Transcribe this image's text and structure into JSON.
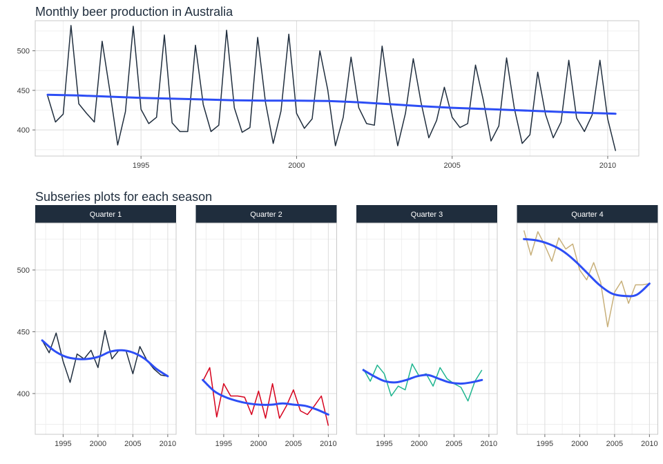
{
  "chart_data": [
    {
      "type": "line",
      "title": "Monthly beer production in Australia",
      "xlabel": "",
      "ylabel": "",
      "xlim": [
        1991.6,
        2011.0
      ],
      "ylim": [
        367,
        538
      ],
      "x_ticks": [
        1995,
        2000,
        2005,
        2010
      ],
      "y_ticks": [
        400,
        450,
        500
      ],
      "grid": true,
      "series": [
        {
          "color": "#1f2d3d",
          "x": [
            1992.0,
            1992.25,
            1992.5,
            1992.75,
            1993.0,
            1993.25,
            1993.5,
            1993.75,
            1994.0,
            1994.25,
            1994.5,
            1994.75,
            1995.0,
            1995.25,
            1995.5,
            1995.75,
            1996.0,
            1996.25,
            1996.5,
            1996.75,
            1997.0,
            1997.25,
            1997.5,
            1997.75,
            1998.0,
            1998.25,
            1998.5,
            1998.75,
            1999.0,
            1999.25,
            1999.5,
            1999.75,
            2000.0,
            2000.25,
            2000.5,
            2000.75,
            2001.0,
            2001.25,
            2001.5,
            2001.75,
            2002.0,
            2002.25,
            2002.5,
            2002.75,
            2003.0,
            2003.25,
            2003.5,
            2003.75,
            2004.0,
            2004.25,
            2004.5,
            2004.75,
            2005.0,
            2005.25,
            2005.5,
            2005.75,
            2006.0,
            2006.25,
            2006.5,
            2006.75,
            2007.0,
            2007.25,
            2007.5,
            2007.75,
            2008.0,
            2008.25,
            2008.5,
            2008.75,
            2009.0,
            2009.25,
            2009.5,
            2009.75,
            2010.0,
            2010.25
          ],
          "y": [
            443,
            410,
            420,
            532,
            433,
            421,
            410,
            512,
            449,
            381,
            423,
            531,
            426,
            408,
            416,
            520,
            409,
            398,
            398,
            507,
            432,
            398,
            406,
            526,
            428,
            397,
            403,
            517,
            435,
            383,
            424,
            521,
            421,
            402,
            414,
            500,
            451,
            380,
            416,
            492,
            428,
            408,
            406,
            506,
            435,
            380,
            421,
            490,
            435,
            390,
            412,
            454,
            416,
            403,
            408,
            482,
            438,
            386,
            405,
            491,
            427,
            383,
            394,
            473,
            420,
            390,
            410,
            488,
            415,
            398,
            419,
            488,
            414,
            374
          ]
        },
        {
          "color": "#2d4ef5",
          "x": [
            1992.0,
            1993.0,
            1994.0,
            1995.0,
            1996.0,
            1997.0,
            1998.0,
            1999.0,
            2000.0,
            2001.0,
            2002.0,
            2003.0,
            2004.0,
            2005.0,
            2006.0,
            2007.0,
            2008.0,
            2009.0,
            2010.25
          ],
          "y": [
            444.5,
            443.5,
            442.0,
            440.5,
            439.5,
            438.5,
            437.5,
            437.0,
            437.0,
            436.5,
            435.0,
            432.5,
            430.0,
            428.0,
            426.5,
            425.0,
            423.5,
            422.0,
            420.5
          ]
        }
      ]
    },
    {
      "type": "line",
      "title": "Subseries plots for each season",
      "xlabel": "",
      "ylabel": "",
      "xlim": [
        1991.0,
        2011.2
      ],
      "ylim": [
        367,
        538
      ],
      "x_ticks": [
        1995,
        2000,
        2005,
        2010
      ],
      "y_ticks": [
        400,
        450,
        500
      ],
      "grid": true,
      "facets": [
        {
          "label": "Quarter 1",
          "color": "#1f2d3d",
          "x": [
            1992,
            1993,
            1994,
            1995,
            1996,
            1997,
            1998,
            1999,
            2000,
            2001,
            2002,
            2003,
            2004,
            2005,
            2006,
            2007,
            2008,
            2009,
            2010
          ],
          "y": [
            443,
            433,
            449,
            426,
            409,
            432,
            428,
            435,
            421,
            451,
            428,
            435,
            435,
            416,
            438,
            427,
            420,
            415,
            414
          ],
          "smooth": [
            443,
            435,
            430,
            428,
            428,
            430,
            434,
            435,
            433,
            428,
            420,
            414
          ]
        },
        {
          "label": "Quarter 2",
          "color": "#d6001c",
          "x": [
            1992,
            1993,
            1994,
            1995,
            1996,
            1997,
            1998,
            1999,
            2000,
            2001,
            2002,
            2003,
            2004,
            2005,
            2006,
            2007,
            2008,
            2009,
            2010
          ],
          "y": [
            410,
            421,
            381,
            408,
            398,
            398,
            397,
            383,
            402,
            380,
            408,
            380,
            390,
            403,
            386,
            383,
            390,
            398,
            374
          ],
          "smooth": [
            411,
            402,
            397,
            394,
            392,
            391,
            391,
            392,
            391,
            390,
            387,
            383
          ]
        },
        {
          "label": "Quarter 3",
          "color": "#1fb58f",
          "x": [
            1992,
            1993,
            1994,
            1995,
            1996,
            1997,
            1998,
            1999,
            2000,
            2001,
            2002,
            2003,
            2004,
            2005,
            2006,
            2007,
            2008,
            2009
          ],
          "y": [
            420,
            410,
            423,
            416,
            398,
            406,
            403,
            424,
            414,
            416,
            406,
            421,
            412,
            408,
            405,
            394,
            410,
            419
          ],
          "smooth": [
            419,
            414,
            410,
            409,
            411,
            414,
            415,
            412,
            409,
            408,
            409,
            411
          ]
        },
        {
          "label": "Quarter 4",
          "color": "#c8b07a",
          "x": [
            1992,
            1993,
            1994,
            1995,
            1996,
            1997,
            1998,
            1999,
            2000,
            2001,
            2002,
            2003,
            2004,
            2005,
            2006,
            2007,
            2008,
            2009,
            2010
          ],
          "y": [
            532,
            512,
            531,
            520,
            507,
            526,
            517,
            521,
            500,
            492,
            506,
            490,
            454,
            482,
            491,
            473,
            488,
            488,
            489
          ],
          "smooth": [
            525,
            524,
            521,
            516,
            508,
            498,
            488,
            481,
            479,
            480,
            489
          ]
        }
      ]
    }
  ]
}
